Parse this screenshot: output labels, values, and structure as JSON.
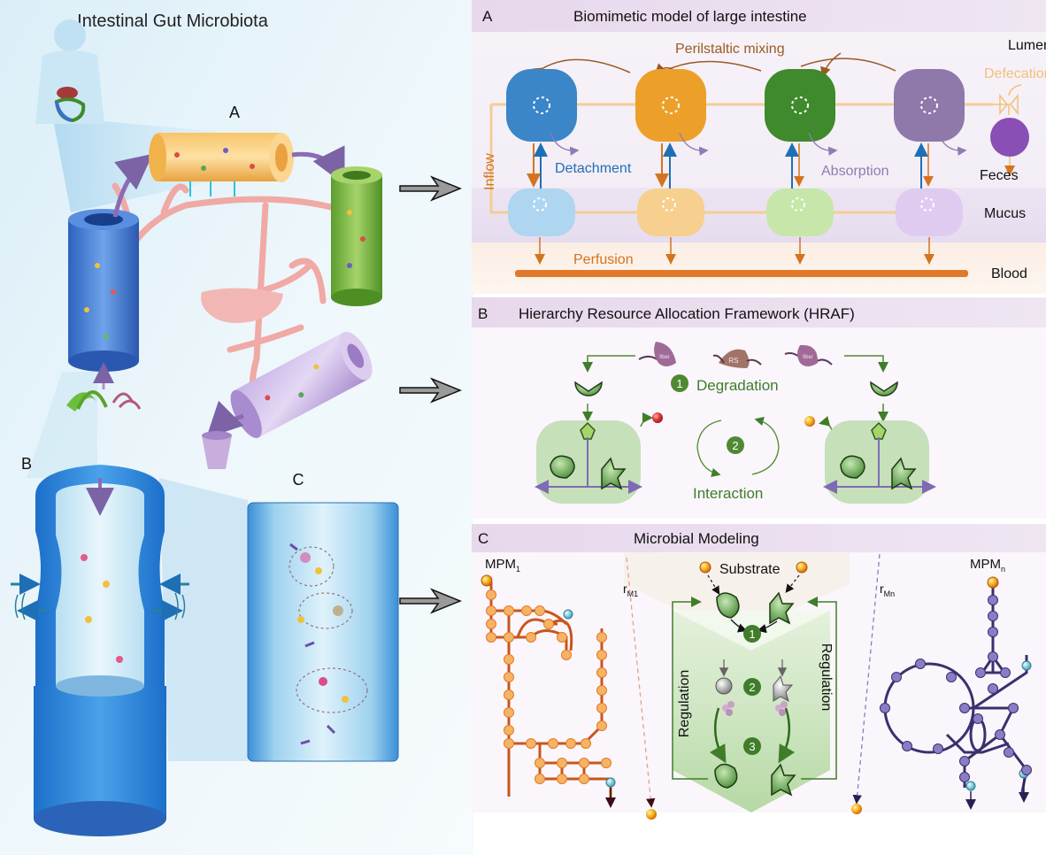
{
  "left": {
    "title": "Intestinal Gut Microbiota",
    "label_a": "A",
    "label_b": "B",
    "label_c": "C"
  },
  "panel_a": {
    "letter": "A",
    "title": "Biomimetic model of large intestine",
    "peristaltic": "Perilstaltic mixing",
    "lumen": "Lumen",
    "defecation": "Defecation",
    "inflow": "Inflow",
    "detachment": "Detachment",
    "absorption": "Absorption",
    "feces": "Feces",
    "mucus": "Mucus",
    "perfusion": "Perfusion",
    "blood": "Blood"
  },
  "panel_b": {
    "letter": "B",
    "title": "Hierarchy Resource Allocation Framework (HRAF)",
    "fiber1": "fiber",
    "rs": "RS",
    "fiber2": "fiber",
    "step1": "1",
    "degradation": "Degradation",
    "step2": "2",
    "interaction": "Interaction"
  },
  "panel_c": {
    "letter": "C",
    "title": "Microbial Modeling",
    "mpm1_base": "MPM",
    "mpm1_sub": "1",
    "mpmn_base": "MPM",
    "mpmn_sub": "n",
    "rm1_base": "r",
    "rm1_sub": "M1",
    "rmn_base": "r",
    "rmn_sub": "Mn",
    "substrate": "Substrate",
    "regulation_left": "Regulation",
    "regulation_right": "Regulation",
    "n1": "1",
    "n2": "2",
    "n3": "3"
  },
  "colors": {
    "compartment1": "#3a86c8",
    "compartment2": "#eca02a",
    "compartment3": "#3f8a2c",
    "compartment4": "#8f78aa",
    "feces": "#8a4fb5",
    "perfusion": "#e07a2a",
    "degradation_green": "#3f7d2a",
    "detachment_blue": "#1f6fb5"
  }
}
